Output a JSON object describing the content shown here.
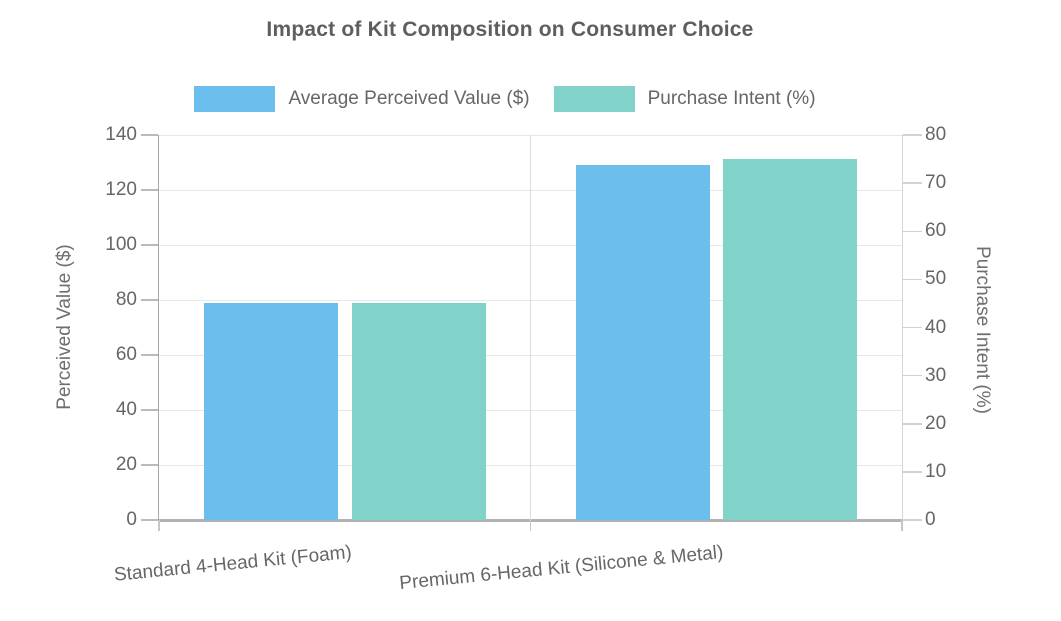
{
  "chart_data": {
    "type": "bar",
    "title": "Impact of Kit Composition on Consumer Choice",
    "categories": [
      "Standard 4-Head Kit (Foam)",
      "Premium 6-Head Kit (Silicone & Metal)"
    ],
    "series": [
      {
        "name": "Average Perceived Value ($)",
        "yaxis": "left",
        "color": "#6CBEEC",
        "values": [
          79,
          129
        ]
      },
      {
        "name": "Purchase Intent (%)",
        "yaxis": "right",
        "color": "#81D3CA",
        "values": [
          45,
          75
        ]
      }
    ],
    "left_axis": {
      "title": "Perceived Value ($)",
      "min": 0,
      "max": 140,
      "tick_step": 20,
      "ticks": [
        0,
        20,
        40,
        60,
        80,
        100,
        120,
        140
      ]
    },
    "right_axis": {
      "title": "Purchase Intent (%)",
      "min": 0,
      "max": 80,
      "tick_step": 10,
      "ticks": [
        0,
        10,
        20,
        30,
        40,
        50,
        60,
        70,
        80
      ]
    },
    "grid": true,
    "legend_position": "top"
  },
  "colors": {
    "bar_blue": "#6CBEEC",
    "bar_teal": "#81D3CA",
    "gridline": "#e7e7e7",
    "axis_left_line": "#a6a6a6",
    "axis_right_line": "#d6d6d6",
    "mid_gridline": "#dcdcdc",
    "baseline": "#b0b4b7",
    "text": "#666666",
    "title_text": "#5e5e5e"
  }
}
